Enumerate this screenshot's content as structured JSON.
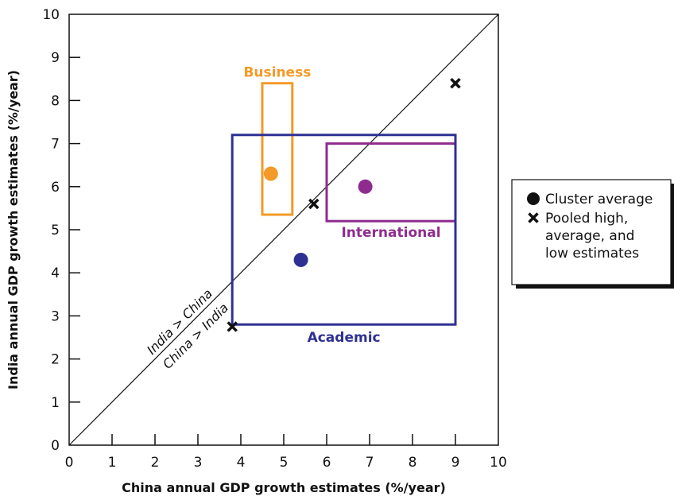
{
  "chart_data": {
    "type": "scatter",
    "xlabel": "China annual GDP growth estimates (%/year)",
    "ylabel": "India annual GDP growth estimates (%/year)",
    "xlim": [
      0,
      10
    ],
    "ylim": [
      0,
      10
    ],
    "x_ticks": [
      "0",
      "1",
      "2",
      "3",
      "4",
      "5",
      "6",
      "7",
      "8",
      "9",
      "10"
    ],
    "y_ticks": [
      "0",
      "1",
      "2",
      "3",
      "4",
      "5",
      "6",
      "7",
      "8",
      "9",
      "10"
    ],
    "grid": false,
    "diagonal_labels": {
      "above": "India > China",
      "below": "China > India"
    },
    "groups": [
      {
        "name": "Business",
        "color": "#F39A28",
        "x_range": [
          4.5,
          5.2
        ],
        "y_range": [
          5.35,
          8.4
        ],
        "average": {
          "x": 4.7,
          "y": 6.3
        }
      },
      {
        "name": "International",
        "color": "#8E2C8E",
        "x_range": [
          6.0,
          9.0
        ],
        "y_range": [
          5.2,
          7.0
        ],
        "average": {
          "x": 6.9,
          "y": 6.0
        }
      },
      {
        "name": "Academic",
        "color": "#2E3192",
        "x_range": [
          3.8,
          9.0
        ],
        "y_range": [
          2.8,
          7.2
        ],
        "average": {
          "x": 5.4,
          "y": 4.3
        }
      }
    ],
    "pooled_estimates": [
      {
        "label": "low",
        "x": 3.8,
        "y": 2.75
      },
      {
        "label": "average",
        "x": 5.7,
        "y": 5.6
      },
      {
        "label": "high",
        "x": 9.0,
        "y": 8.4
      }
    ],
    "legend": {
      "position": "right",
      "entries": [
        {
          "symbol": "circle",
          "lines": [
            "Cluster average"
          ]
        },
        {
          "symbol": "cross",
          "lines": [
            "Pooled high,",
            "average, and",
            "low estimates"
          ]
        }
      ]
    }
  }
}
